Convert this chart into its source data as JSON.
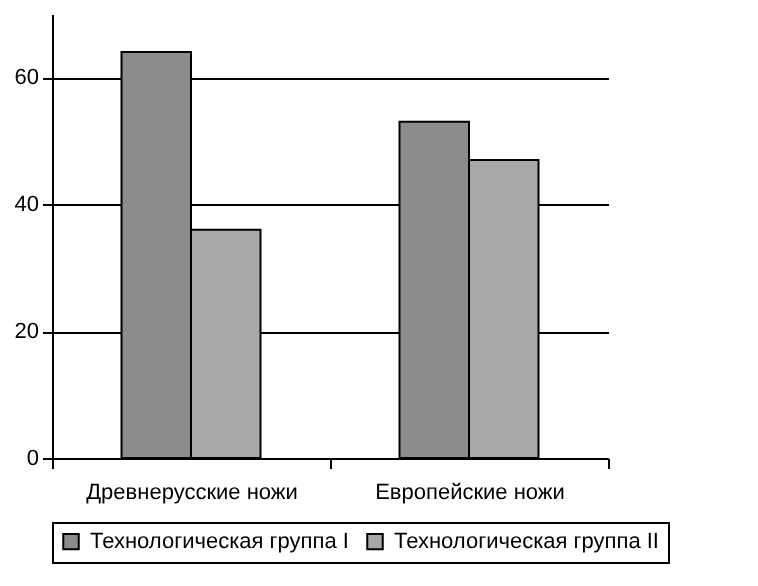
{
  "chart_data": {
    "type": "bar",
    "categories": [
      "Древнерусские ножи",
      "Европейские ножи"
    ],
    "series": [
      {
        "name": "Технологическая группа I",
        "color": "#8c8c8c",
        "values": [
          64,
          53
        ]
      },
      {
        "name": "Технологическая группа II",
        "color": "#a8a8a8",
        "values": [
          36,
          47
        ]
      }
    ],
    "ylim": [
      0,
      70
    ],
    "yticks": [
      0,
      20,
      40,
      60
    ],
    "grid": "y",
    "legend": "bottom"
  }
}
